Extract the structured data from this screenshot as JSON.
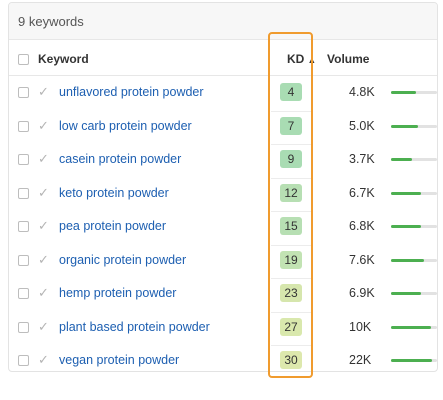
{
  "panel": {
    "title": "9 keywords"
  },
  "columns": {
    "keyword": "Keyword",
    "kd": "KD",
    "kd_sort": "▲",
    "volume": "Volume"
  },
  "colors": {
    "link": "#1d5fb1",
    "highlight": "#f09b2e",
    "bar": "#4caf50"
  },
  "rows": [
    {
      "keyword": "unflavored protein powder",
      "kd": "4",
      "volume": "4.8K",
      "volume_share": 0.55,
      "kd_color": "#a9dcb3"
    },
    {
      "keyword": "low carb protein powder",
      "kd": "7",
      "volume": "5.0K",
      "volume_share": 0.58,
      "kd_color": "#a9dcb3"
    },
    {
      "keyword": "casein protein powder",
      "kd": "9",
      "volume": "3.7K",
      "volume_share": 0.45,
      "kd_color": "#a9dcb3"
    },
    {
      "keyword": "keto protein powder",
      "kd": "12",
      "volume": "6.7K",
      "volume_share": 0.65,
      "kd_color": "#b7dfb3"
    },
    {
      "keyword": "pea protein powder",
      "kd": "15",
      "volume": "6.8K",
      "volume_share": 0.66,
      "kd_color": "#b7dfb3"
    },
    {
      "keyword": "organic protein powder",
      "kd": "19",
      "volume": "7.6K",
      "volume_share": 0.72,
      "kd_color": "#c2e3b3"
    },
    {
      "keyword": "hemp protein powder",
      "kd": "23",
      "volume": "6.9K",
      "volume_share": 0.66,
      "kd_color": "#d6e6ad"
    },
    {
      "keyword": "plant based protein powder",
      "kd": "27",
      "volume": "10K",
      "volume_share": 0.86,
      "kd_color": "#d9e8ad"
    },
    {
      "keyword": "vegan protein powder",
      "kd": "30",
      "volume": "22K",
      "volume_share": 0.9,
      "kd_color": "#dde8ad"
    }
  ]
}
